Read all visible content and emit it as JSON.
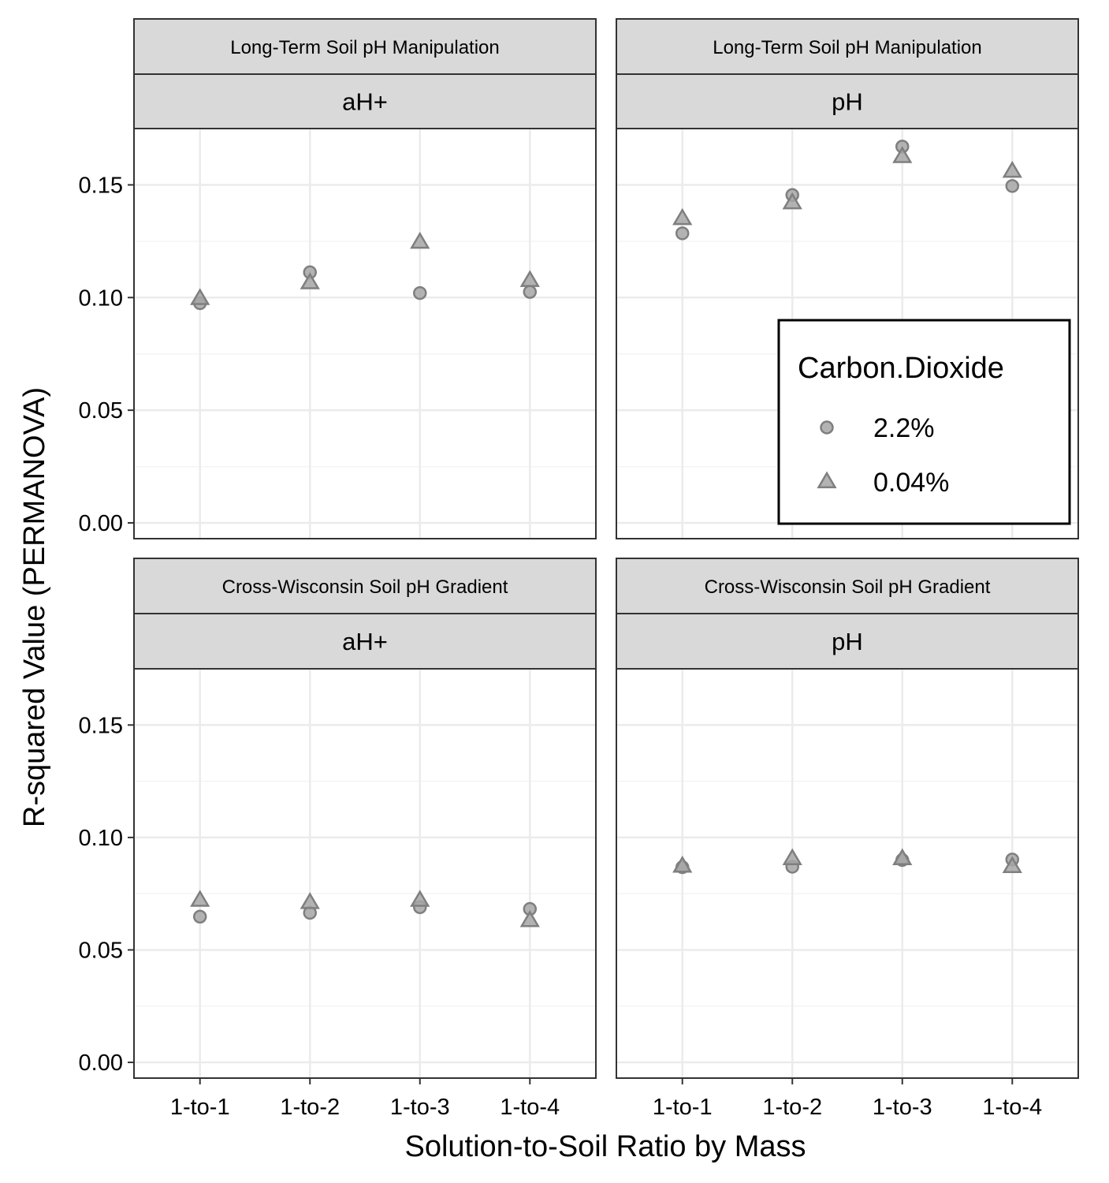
{
  "chart_data": {
    "type": "scatter",
    "xlabel": "Solution-to-Soil Ratio by Mass",
    "ylabel": "R-squared Value (PERMANOVA)",
    "categories": [
      "1-to-1",
      "1-to-2",
      "1-to-3",
      "1-to-4"
    ],
    "ylim": [
      -0.007,
      0.175
    ],
    "yticks": [
      "0.00",
      "0.05",
      "0.10",
      "0.15"
    ],
    "grid": true,
    "legend": {
      "title": "Carbon.Dioxide",
      "placement": "inside top-right panel, bottom-right",
      "entries": [
        {
          "label": "2.2%",
          "shape": "circle"
        },
        {
          "label": "0.04%",
          "shape": "triangle"
        }
      ]
    },
    "colors": {
      "point_fill": "#a6a6a6",
      "point_stroke": "#7f7f7f",
      "strip_bg": "#d9d9d9",
      "grid": "#ebebeb"
    },
    "panels": [
      {
        "row": "Long-Term Soil pH Manipulation",
        "col": "aH+",
        "series": [
          {
            "name": "2.2%",
            "values": [
              0.0975,
              0.1112,
              0.102,
              0.1025
            ]
          },
          {
            "name": "0.04%",
            "values": [
              0.0995,
              0.1065,
              0.1245,
              0.1075
            ]
          }
        ]
      },
      {
        "row": "Long-Term Soil pH Manipulation",
        "col": "pH",
        "series": [
          {
            "name": "2.2%",
            "values": [
              0.1285,
              0.1455,
              0.167,
              0.1495
            ]
          },
          {
            "name": "0.04%",
            "values": [
              0.135,
              0.142,
              0.1625,
              0.156
            ]
          }
        ]
      },
      {
        "row": "Cross-Wisconsin Soil pH Gradient",
        "col": "aH+",
        "series": [
          {
            "name": "2.2%",
            "values": [
              0.0648,
              0.0665,
              0.069,
              0.0682
            ]
          },
          {
            "name": "0.04%",
            "values": [
              0.072,
              0.071,
              0.072,
              0.063
            ]
          }
        ]
      },
      {
        "row": "Cross-Wisconsin Soil pH Gradient",
        "col": "pH",
        "series": [
          {
            "name": "2.2%",
            "values": [
              0.0868,
              0.087,
              0.09,
              0.0902
            ]
          },
          {
            "name": "0.04%",
            "values": [
              0.0872,
              0.0905,
              0.0905,
              0.087
            ]
          }
        ]
      }
    ]
  }
}
